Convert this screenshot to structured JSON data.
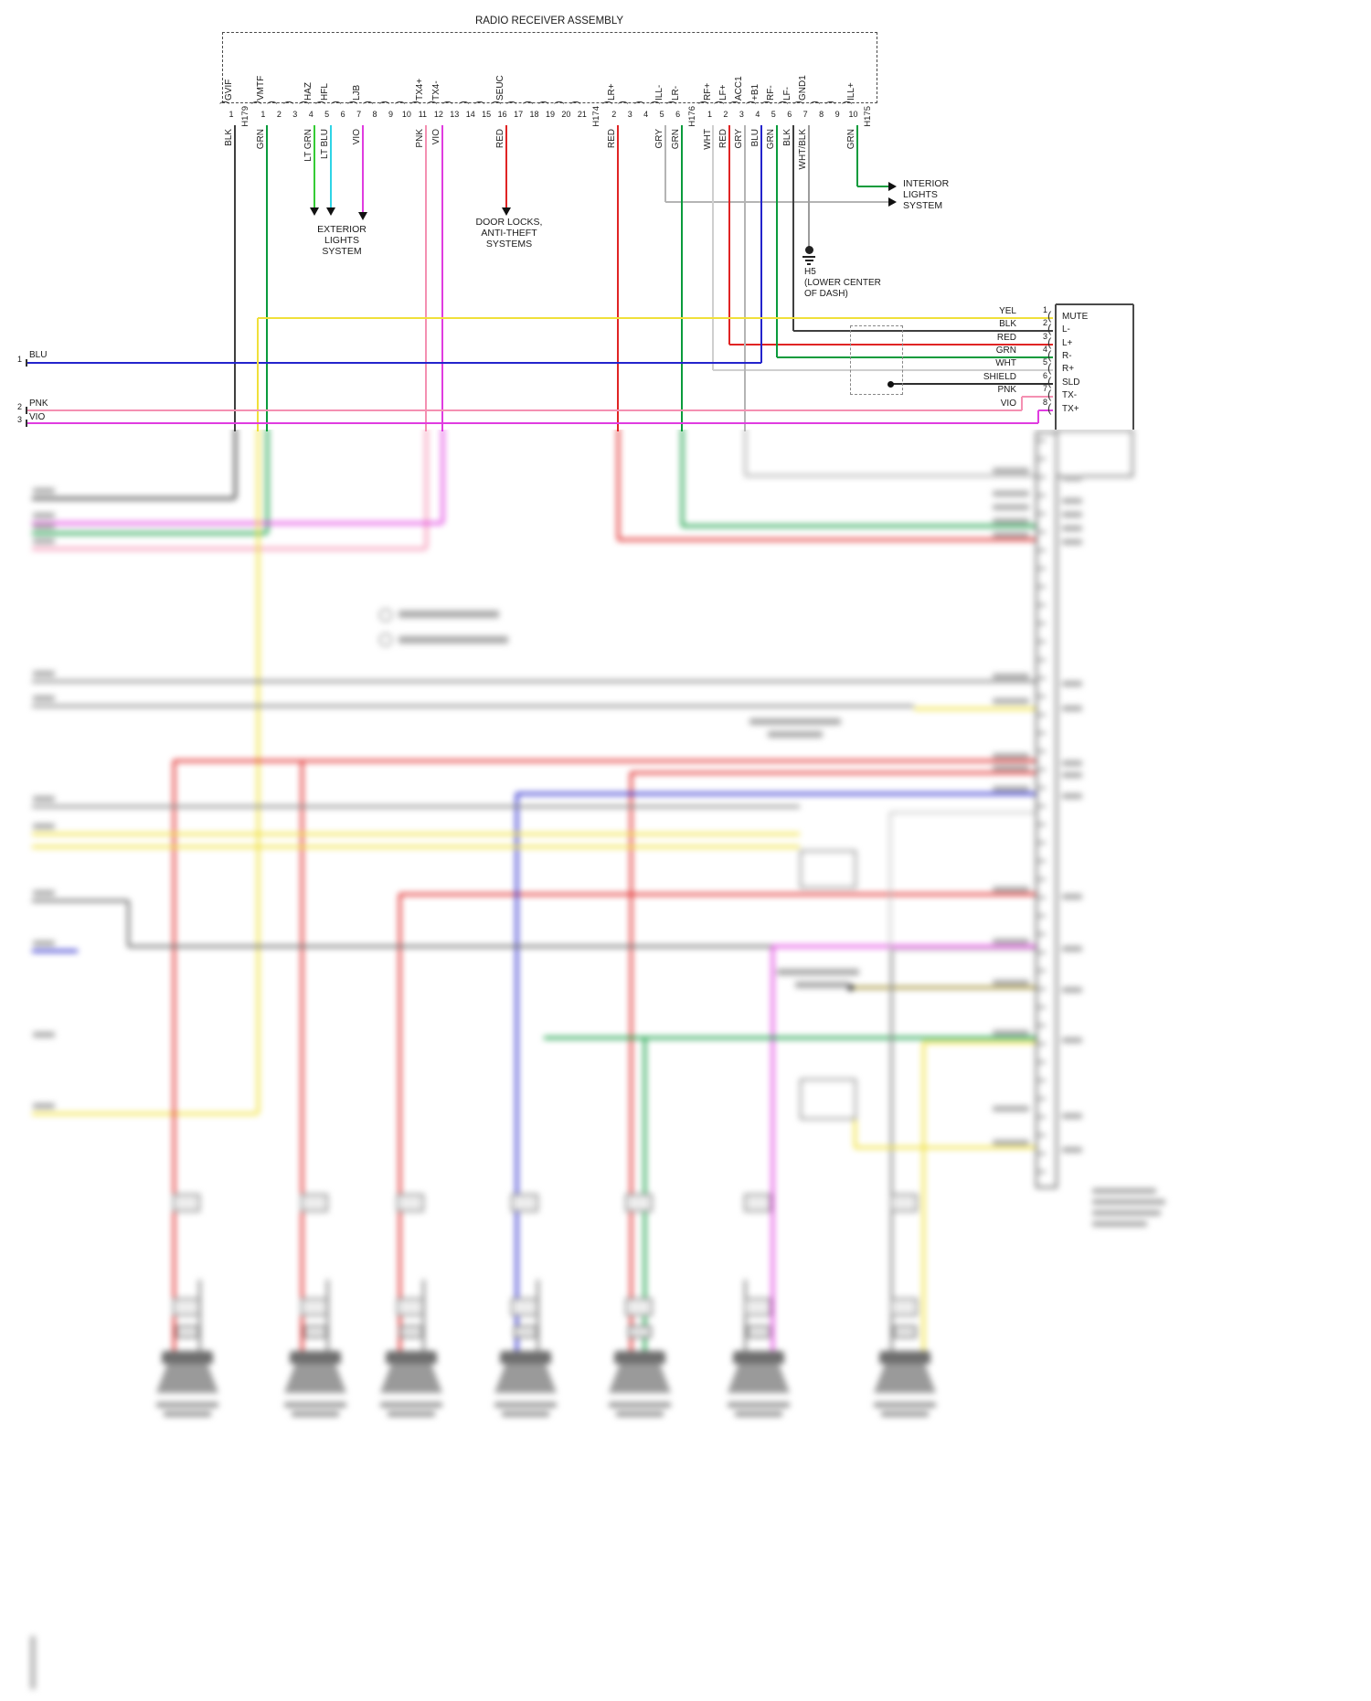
{
  "title": "RADIO RECEIVER ASSEMBLY",
  "palette": {
    "BLK": "#3f3f3f",
    "GRN": "#0a9b3c",
    "LTGRN": "#35cc35",
    "LTBLU": "#2fd4e6",
    "VIO": "#e03ce0",
    "PNK": "#f490b2",
    "RED": "#e02424",
    "GRY": "#b4b4b4",
    "WHT": "#cfcfcf",
    "BLU": "#2424cc",
    "YEL": "#f0e03a",
    "WHTBLK": "#9c9c9c",
    "SH": "#2e2e2e",
    "GRY2": "#8b8b8b",
    "GRY3": "#6f6f6f",
    "OLV": "#9c8a28",
    "INK": "#111111"
  },
  "pins": [
    {
      "pin": "1",
      "label": "GVIF",
      "wire": "BLK"
    },
    {
      "conn": "H179"
    },
    {
      "pin": "1",
      "label": "VMTF",
      "wire": "GRN"
    },
    {
      "pin": "2"
    },
    {
      "pin": "3"
    },
    {
      "pin": "4",
      "label": "HAZ",
      "wire": "LT GRN"
    },
    {
      "pin": "5",
      "label": "HFL",
      "wire": "LT BLU"
    },
    {
      "pin": "6"
    },
    {
      "pin": "7",
      "label": "LJB",
      "wire": "VIO"
    },
    {
      "pin": "8"
    },
    {
      "pin": "9"
    },
    {
      "pin": "10"
    },
    {
      "pin": "11",
      "label": "TX4+",
      "wire": "PNK"
    },
    {
      "pin": "12",
      "label": "TX4-",
      "wire": "VIO"
    },
    {
      "pin": "13"
    },
    {
      "pin": "14"
    },
    {
      "pin": "15"
    },
    {
      "pin": "16",
      "label": "SEUC",
      "wire": "RED"
    },
    {
      "pin": "17"
    },
    {
      "pin": "18"
    },
    {
      "pin": "19"
    },
    {
      "pin": "20"
    },
    {
      "pin": "21"
    },
    {
      "conn": "H174"
    },
    {
      "pin": "2",
      "label": "LR+",
      "wire": "RED"
    },
    {
      "pin": "3"
    },
    {
      "pin": "4"
    },
    {
      "pin": "5",
      "label": "ILL-",
      "wire": "GRY"
    },
    {
      "pin": "6",
      "label": "LR-",
      "wire": "GRN"
    },
    {
      "conn": "H176"
    },
    {
      "pin": "1",
      "label": "RF+",
      "wire": "WHT"
    },
    {
      "pin": "2",
      "label": "LF+",
      "wire": "RED"
    },
    {
      "pin": "3",
      "label": "ACC1",
      "wire": "GRY"
    },
    {
      "pin": "4",
      "label": "+B1",
      "wire": "BLU"
    },
    {
      "pin": "5",
      "label": "RF-",
      "wire": "GRN"
    },
    {
      "pin": "6",
      "label": "LF-",
      "wire": "BLK"
    },
    {
      "pin": "7",
      "label": "GND1",
      "wire": "WHT/BLK"
    },
    {
      "pin": "8"
    },
    {
      "pin": "9"
    },
    {
      "pin": "10",
      "label": "ILL+",
      "wire": "GRN"
    },
    {
      "conn": "H175"
    }
  ],
  "annotations": {
    "exterior_lights": [
      "EXTERIOR",
      "LIGHTS",
      "SYSTEM"
    ],
    "door_locks": [
      "DOOR LOCKS,",
      "ANTI-THEFT",
      "SYSTEMS"
    ],
    "interior_lights": [
      "INTERIOR",
      "LIGHTS",
      "SYSTEM"
    ],
    "ground": [
      "H5",
      "(LOWER CENTER",
      "OF DASH)"
    ]
  },
  "left_wires": [
    {
      "num": "1",
      "color": "BLU"
    },
    {
      "num": "2",
      "color": "PNK"
    },
    {
      "num": "3",
      "color": "VIO"
    }
  ],
  "amp_connector": {
    "rows": [
      {
        "color": "YEL",
        "pin": "1",
        "label": "MUTE"
      },
      {
        "color": "BLK",
        "pin": "2",
        "label": "L-"
      },
      {
        "color": "RED",
        "pin": "3",
        "label": "L+"
      },
      {
        "color": "GRN",
        "pin": "4",
        "label": "R-"
      },
      {
        "color": "WHT",
        "pin": "5",
        "label": "R+"
      },
      {
        "color": "SHIELD",
        "pin": "6",
        "label": "SLD"
      },
      {
        "color": "PNK",
        "pin": "7",
        "label": "TX-"
      },
      {
        "color": "VIO",
        "pin": "8",
        "label": "TX+"
      }
    ]
  }
}
